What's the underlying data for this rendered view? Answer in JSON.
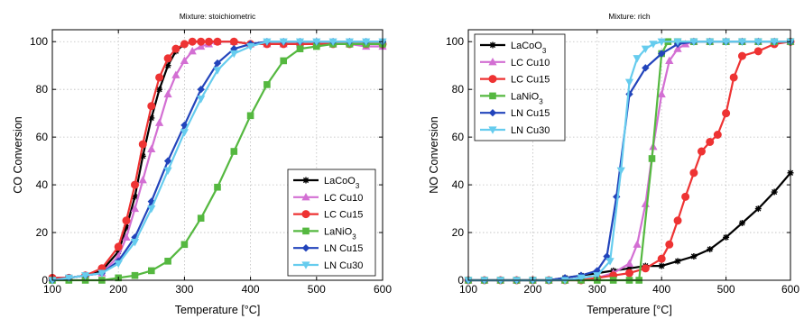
{
  "chart_data": [
    {
      "type": "line",
      "title": "Mixture:  stoichiometric",
      "xlabel": "Temperature [°C]",
      "ylabel": "CO Conversion",
      "xlim": [
        100,
        600
      ],
      "ylim": [
        0,
        105
      ],
      "xticks": [
        100,
        200,
        300,
        400,
        500,
        600
      ],
      "yticks": [
        0,
        20,
        40,
        60,
        80,
        100
      ],
      "grid": true,
      "legend_position": "bottom-right",
      "series": [
        {
          "name": "LaCoO3",
          "color": "#000000",
          "marker": "star",
          "x": [
            100,
            125,
            150,
            175,
            200,
            212,
            225,
            237,
            250,
            262,
            275,
            287,
            300,
            312,
            325,
            337,
            350,
            375,
            400,
            425,
            450,
            475,
            500,
            525,
            550,
            575,
            600
          ],
          "y": [
            1,
            1,
            2,
            4,
            12,
            22,
            35,
            52,
            68,
            80,
            90,
            96,
            99,
            100,
            100,
            100,
            100,
            100,
            99,
            99,
            99,
            99,
            99,
            99,
            99,
            99,
            99
          ]
        },
        {
          "name": "LC Cu10",
          "color": "#d36fd3",
          "marker": "triangle-up",
          "x": [
            100,
            125,
            150,
            175,
            200,
            212,
            225,
            237,
            250,
            262,
            275,
            287,
            300,
            312,
            325,
            337,
            350,
            375,
            400,
            425,
            450,
            475,
            500,
            525,
            550,
            575,
            600
          ],
          "y": [
            1,
            1,
            2,
            3,
            10,
            18,
            30,
            42,
            55,
            66,
            78,
            86,
            92,
            96,
            98,
            99,
            100,
            100,
            99,
            99,
            99,
            99,
            99,
            99,
            99,
            98,
            98
          ]
        },
        {
          "name": "LC Cu15",
          "color": "#ee3333",
          "marker": "circle",
          "x": [
            100,
            125,
            150,
            175,
            200,
            212,
            225,
            237,
            250,
            262,
            275,
            287,
            300,
            312,
            325,
            337,
            350,
            375,
            400,
            425,
            450,
            475,
            500,
            525,
            550,
            575,
            600
          ],
          "y": [
            1,
            1,
            2,
            5,
            14,
            25,
            40,
            57,
            73,
            85,
            93,
            97,
            99,
            100,
            100,
            100,
            100,
            100,
            99,
            99,
            99,
            99,
            99,
            99,
            99,
            99,
            99
          ]
        },
        {
          "name": "LaNiO3",
          "color": "#55b840",
          "marker": "square",
          "x": [
            100,
            125,
            150,
            175,
            200,
            225,
            250,
            275,
            300,
            325,
            350,
            375,
            400,
            425,
            450,
            475,
            500,
            525,
            550,
            575,
            600
          ],
          "y": [
            0,
            0,
            0,
            0,
            1,
            2,
            4,
            8,
            15,
            26,
            39,
            54,
            69,
            82,
            92,
            97,
            98,
            99,
            99,
            99,
            99
          ]
        },
        {
          "name": "LN Cu15",
          "color": "#2244bb",
          "marker": "diamond",
          "x": [
            100,
            125,
            150,
            175,
            200,
            225,
            250,
            275,
            300,
            325,
            350,
            375,
            400,
            425,
            450,
            475,
            500,
            525,
            550,
            575,
            600
          ],
          "y": [
            0,
            1,
            2,
            3,
            8,
            18,
            33,
            50,
            65,
            80,
            91,
            97,
            99,
            100,
            100,
            100,
            100,
            100,
            100,
            100,
            100
          ]
        },
        {
          "name": "LN Cu30",
          "color": "#66ccee",
          "marker": "triangle-down",
          "x": [
            100,
            125,
            150,
            175,
            200,
            225,
            250,
            275,
            300,
            325,
            350,
            375,
            400,
            425,
            450,
            475,
            500,
            525,
            550,
            575,
            600
          ],
          "y": [
            0,
            1,
            2,
            3,
            7,
            16,
            30,
            46,
            62,
            76,
            88,
            95,
            98,
            100,
            100,
            100,
            100,
            100,
            100,
            100,
            100
          ]
        }
      ]
    },
    {
      "type": "line",
      "title": "Mixture:  rich",
      "xlabel": "Temperature [°C]",
      "ylabel": "NO Conversion",
      "xlim": [
        100,
        600
      ],
      "ylim": [
        0,
        105
      ],
      "xticks": [
        100,
        200,
        300,
        400,
        500,
        600
      ],
      "yticks": [
        0,
        20,
        40,
        60,
        80,
        100
      ],
      "grid": true,
      "legend_position": "top-left",
      "series": [
        {
          "name": "LaCoO3",
          "color": "#000000",
          "marker": "star",
          "x": [
            100,
            125,
            150,
            175,
            200,
            225,
            250,
            275,
            300,
            325,
            350,
            375,
            400,
            425,
            450,
            475,
            500,
            525,
            550,
            575,
            600
          ],
          "y": [
            0,
            0,
            0,
            0,
            0,
            0,
            1,
            2,
            3,
            4,
            5,
            6,
            6,
            8,
            10,
            13,
            18,
            24,
            30,
            37,
            45
          ]
        },
        {
          "name": "LC Cu10",
          "color": "#d36fd3",
          "marker": "triangle-up",
          "x": [
            100,
            125,
            150,
            175,
            200,
            225,
            250,
            275,
            300,
            325,
            350,
            362,
            375,
            387,
            400,
            412,
            425,
            437,
            450,
            475,
            500,
            525,
            550,
            575,
            600
          ],
          "y": [
            0,
            0,
            0,
            0,
            0,
            0,
            0,
            0,
            1,
            3,
            7,
            15,
            32,
            56,
            78,
            92,
            97,
            99,
            100,
            100,
            100,
            100,
            100,
            100,
            100
          ]
        },
        {
          "name": "LC Cu15",
          "color": "#ee3333",
          "marker": "circle",
          "x": [
            100,
            125,
            150,
            175,
            200,
            225,
            250,
            275,
            300,
            325,
            350,
            375,
            400,
            412,
            425,
            437,
            450,
            462,
            475,
            487,
            500,
            512,
            525,
            550,
            575,
            600
          ],
          "y": [
            0,
            0,
            0,
            0,
            0,
            0,
            0,
            0,
            1,
            2,
            3,
            5,
            9,
            15,
            25,
            35,
            45,
            54,
            58,
            61,
            70,
            85,
            94,
            96,
            99,
            100
          ]
        },
        {
          "name": "LaNiO3",
          "color": "#55b840",
          "marker": "square",
          "x": [
            100,
            125,
            150,
            175,
            200,
            225,
            250,
            275,
            300,
            325,
            350,
            365,
            385,
            400,
            410,
            425,
            450,
            475,
            500,
            525,
            550,
            575,
            600
          ],
          "y": [
            0,
            0,
            0,
            0,
            0,
            0,
            0,
            0,
            0,
            0,
            0,
            0,
            51,
            95,
            100,
            100,
            100,
            100,
            100,
            100,
            100,
            100,
            100
          ]
        },
        {
          "name": "LN Cu15",
          "color": "#2244bb",
          "marker": "diamond",
          "x": [
            100,
            125,
            150,
            175,
            200,
            225,
            250,
            275,
            300,
            315,
            330,
            350,
            375,
            400,
            425,
            450,
            475,
            500,
            525,
            550,
            575,
            600
          ],
          "y": [
            0,
            0,
            0,
            0,
            0,
            0,
            1,
            2,
            4,
            10,
            35,
            78,
            89,
            95,
            99,
            100,
            100,
            100,
            100,
            100,
            100,
            100
          ]
        },
        {
          "name": "LN Cu30",
          "color": "#66ccee",
          "marker": "triangle-down",
          "x": [
            100,
            125,
            150,
            175,
            200,
            225,
            250,
            275,
            300,
            320,
            337,
            350,
            362,
            375,
            387,
            400,
            425,
            450,
            475,
            500,
            525,
            550,
            575,
            600
          ],
          "y": [
            0,
            0,
            0,
            0,
            0,
            0,
            0,
            1,
            2,
            8,
            46,
            83,
            93,
            97,
            99,
            100,
            100,
            100,
            100,
            100,
            100,
            100,
            100,
            100
          ]
        }
      ]
    }
  ]
}
